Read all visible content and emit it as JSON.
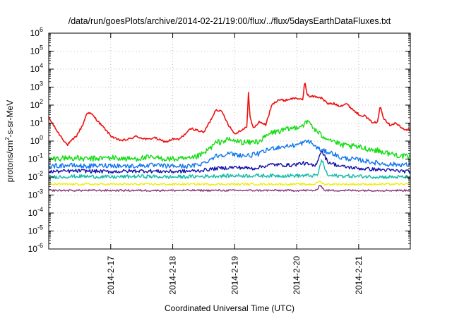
{
  "chart_data": {
    "type": "line",
    "title": "/data/run/goesPlots/archive/2014-02-21/19:00/flux/../flux/5daysEarthDataFluxes.txt",
    "xlabel": "Coordinated Universal Time (UTC)",
    "ylabel": "protons/cm²-s-sr-MeV",
    "ylabel_parts": [
      "protons/cm",
      "2",
      "-s-sr-MeV"
    ],
    "yscale": "log",
    "ylim_exp": [
      -6,
      6
    ],
    "y_tick_exponents": [
      "6",
      "5",
      "4",
      "3",
      "2",
      "1",
      "0",
      "-1",
      "-2",
      "-3",
      "-4",
      "-5",
      "-6"
    ],
    "y_tick_base": "10",
    "x_range_days": [
      "2014-02-16 00:00",
      "2014-02-21 20:00"
    ],
    "x_ticks": [
      "2014-2-17",
      "2014-2-18",
      "2014-2-19",
      "2014-2-20",
      "2014-2-21"
    ],
    "grid": true,
    "legend": "none",
    "series": [
      {
        "color": "#ee1111",
        "x_day": [
          16.0,
          16.15,
          16.3,
          16.45,
          16.55,
          16.62,
          16.7,
          16.8,
          16.9,
          17.0,
          17.1,
          17.2,
          17.3,
          17.4,
          17.5,
          17.6,
          17.7,
          17.8,
          17.9,
          18.0,
          18.1,
          18.2,
          18.3,
          18.4,
          18.5,
          18.6,
          18.7,
          18.8,
          18.9,
          19.0,
          19.1,
          19.2,
          19.22,
          19.25,
          19.3,
          19.4,
          19.5,
          19.6,
          19.7,
          19.8,
          19.9,
          20.0,
          20.1,
          20.13,
          20.16,
          20.2,
          20.3,
          20.4,
          20.5,
          20.6,
          20.7,
          20.8,
          20.9,
          21.0,
          21.1,
          21.2,
          21.3,
          21.35,
          21.4,
          21.5,
          21.6,
          21.7,
          21.83
        ],
        "y": [
          20,
          3,
          0.6,
          2,
          8,
          40,
          30,
          12,
          5,
          2,
          1.2,
          1.1,
          1.3,
          1.8,
          1.5,
          1.2,
          1.6,
          1.1,
          0.9,
          1.3,
          1.2,
          2.5,
          5,
          4,
          3,
          12,
          60,
          40,
          8,
          2.5,
          4,
          6,
          600,
          20,
          5,
          12,
          8,
          100,
          200,
          180,
          220,
          250,
          180,
          2500,
          500,
          300,
          300,
          250,
          120,
          120,
          90,
          120,
          60,
          30,
          25,
          12,
          10,
          100,
          20,
          8,
          10,
          5,
          4
        ]
      },
      {
        "color": "#11dd11",
        "x_day": [
          16.0,
          16.3,
          16.6,
          17.0,
          17.3,
          17.6,
          18.0,
          18.3,
          18.5,
          18.7,
          18.9,
          19.0,
          19.2,
          19.4,
          19.6,
          19.8,
          20.0,
          20.1,
          20.2,
          20.3,
          20.4,
          20.5,
          20.6,
          20.7,
          20.9,
          21.1,
          21.3,
          21.5,
          21.7,
          21.83
        ],
        "y": [
          0.1,
          0.12,
          0.1,
          0.12,
          0.1,
          0.12,
          0.1,
          0.1,
          0.2,
          0.8,
          1.2,
          1.0,
          0.8,
          1.0,
          3,
          4,
          6,
          8,
          12,
          4,
          2,
          1.5,
          1.0,
          0.6,
          0.5,
          0.4,
          0.3,
          0.2,
          0.15,
          0.12
        ]
      },
      {
        "color": "#1177ee",
        "x_day": [
          16.0,
          16.3,
          16.6,
          17.0,
          17.3,
          17.6,
          18.0,
          18.3,
          18.5,
          18.7,
          18.9,
          19.0,
          19.2,
          19.4,
          19.6,
          19.8,
          20.0,
          20.1,
          20.2,
          20.3,
          20.4,
          20.5,
          20.6,
          20.7,
          20.9,
          21.1,
          21.3,
          21.5,
          21.7,
          21.83
        ],
        "y": [
          0.04,
          0.045,
          0.04,
          0.045,
          0.04,
          0.045,
          0.04,
          0.04,
          0.06,
          0.15,
          0.2,
          0.18,
          0.15,
          0.2,
          0.4,
          0.5,
          0.6,
          0.8,
          1.0,
          0.5,
          0.3,
          0.25,
          0.2,
          0.12,
          0.1,
          0.08,
          0.06,
          0.05,
          0.05,
          0.045
        ]
      },
      {
        "color": "#1111aa",
        "x_day": [
          16.0,
          16.5,
          17.0,
          17.5,
          18.0,
          18.4,
          18.7,
          19.0,
          19.3,
          19.6,
          19.9,
          20.1,
          20.3,
          20.4,
          20.45,
          20.5,
          20.7,
          21.0,
          21.4,
          21.83
        ],
        "y": [
          0.02,
          0.022,
          0.02,
          0.022,
          0.02,
          0.022,
          0.03,
          0.035,
          0.03,
          0.05,
          0.045,
          0.06,
          0.04,
          0.3,
          0.15,
          0.07,
          0.04,
          0.03,
          0.025,
          0.02
        ]
      },
      {
        "color": "#11bbaa",
        "x_day": [
          16.0,
          16.5,
          17.0,
          17.5,
          18.0,
          18.5,
          19.0,
          19.5,
          20.0,
          20.3,
          20.35,
          20.4,
          20.5,
          21.0,
          21.5,
          21.83
        ],
        "y": [
          0.01,
          0.011,
          0.01,
          0.011,
          0.01,
          0.011,
          0.012,
          0.012,
          0.012,
          0.012,
          0.015,
          0.1,
          0.012,
          0.011,
          0.01,
          0.01
        ]
      },
      {
        "color": "#eeee00",
        "x_day": [
          16.0,
          17.0,
          18.0,
          19.0,
          20.0,
          20.3,
          20.36,
          20.45,
          21.0,
          21.83
        ],
        "y": [
          0.004,
          0.004,
          0.004,
          0.004,
          0.004,
          0.004,
          0.006,
          0.004,
          0.004,
          0.004
        ]
      },
      {
        "color": "#883377",
        "x_day": [
          16.0,
          17.0,
          18.0,
          19.0,
          20.0,
          20.33,
          20.37,
          20.45,
          21.0,
          21.83
        ],
        "y": [
          0.0018,
          0.0018,
          0.0018,
          0.0018,
          0.0018,
          0.0018,
          0.004,
          0.0018,
          0.0018,
          0.0018
        ]
      }
    ]
  }
}
